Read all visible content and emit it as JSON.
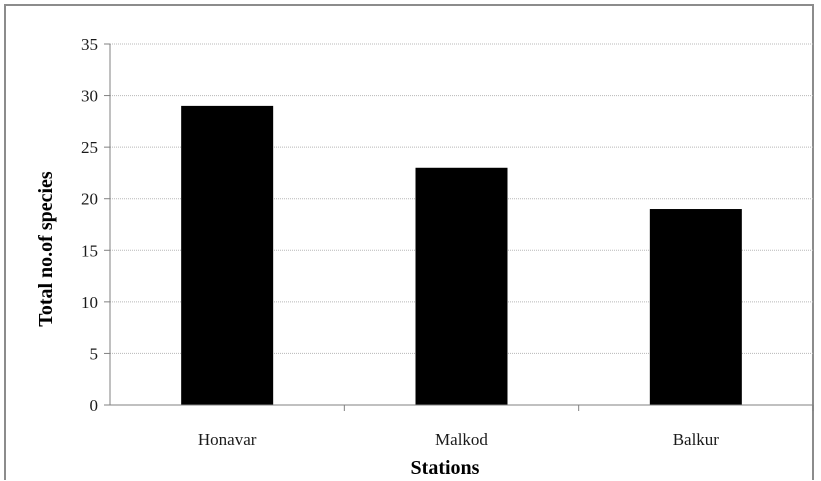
{
  "chart_data": {
    "type": "bar",
    "categories": [
      "Honavar",
      "Malkod",
      "Balkur"
    ],
    "values": [
      29,
      23,
      19
    ],
    "xlabel": "Stations",
    "ylabel": "Total no.of species",
    "ylim": [
      0,
      35
    ],
    "yticks": [
      0,
      5,
      10,
      15,
      20,
      25,
      30,
      35
    ],
    "grid": true,
    "bar_color": "#000000",
    "grid_color": "#b8b8b8"
  }
}
